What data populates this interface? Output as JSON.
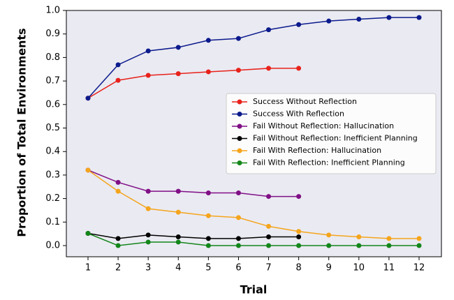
{
  "chart_data": {
    "type": "line",
    "xlabel": "Trial",
    "ylabel": "Proportion of Total Environments",
    "xlim": [
      0.3,
      12.7
    ],
    "xticks": [
      1,
      2,
      3,
      4,
      5,
      6,
      7,
      8,
      9,
      10,
      11,
      12
    ],
    "ylim": [
      0.0,
      1.0
    ],
    "yticks": [
      {
        "value": 0,
        "label": "0.0"
      },
      {
        "value": 0.1,
        "label": "0.1"
      },
      {
        "value": 0.2,
        "label": "0.2"
      },
      {
        "value": 0.3,
        "label": "0.3"
      },
      {
        "value": 0.4,
        "label": "0.4"
      },
      {
        "value": 0.5,
        "label": "0.5"
      },
      {
        "value": 0.6,
        "label": "0.6"
      },
      {
        "value": 0.7,
        "label": "0.7"
      },
      {
        "value": 0.8,
        "label": "0.8"
      },
      {
        "value": 0.9,
        "label": "0.9"
      },
      {
        "value": 1,
        "label": "1.0"
      }
    ],
    "x": [
      1,
      2,
      3,
      4,
      5,
      6,
      7,
      8,
      9,
      10,
      11,
      12
    ],
    "legend_position": "center right",
    "series": [
      {
        "name": "Success Without Reflection",
        "color": "#e8221b",
        "values": [
          0.627,
          0.703,
          0.724,
          0.731,
          0.739,
          0.746,
          0.754,
          0.754,
          null,
          null,
          null,
          null
        ]
      },
      {
        "name": "Success With Reflection",
        "color": "#0b1a8c",
        "values": [
          0.627,
          0.769,
          0.828,
          0.843,
          0.873,
          0.881,
          0.918,
          0.94,
          0.955,
          0.963,
          0.97,
          0.97
        ]
      },
      {
        "name": "Fail Without Reflection: Hallucination",
        "color": "#800f86",
        "values": [
          0.321,
          0.269,
          0.231,
          0.231,
          0.224,
          0.224,
          0.209,
          0.209,
          null,
          null,
          null,
          null
        ]
      },
      {
        "name": "Fail Without Reflection: Inefficient Planning",
        "color": "#000000",
        "values": [
          0.052,
          0.03,
          0.045,
          0.037,
          0.03,
          0.03,
          0.037,
          0.037,
          null,
          null,
          null,
          null
        ]
      },
      {
        "name": "Fail With Reflection: Hallucination",
        "color": "#f5a51c",
        "values": [
          0.321,
          0.231,
          0.157,
          0.142,
          0.127,
          0.119,
          0.082,
          0.06,
          0.045,
          0.037,
          0.03,
          0.03
        ]
      },
      {
        "name": "Fail With Reflection: Inefficient Planning",
        "color": "#13861a",
        "values": [
          0.052,
          0.0,
          0.015,
          0.015,
          0.0,
          0.0,
          0.0,
          0.0,
          0.0,
          0.0,
          0.0,
          0.0
        ]
      }
    ]
  }
}
